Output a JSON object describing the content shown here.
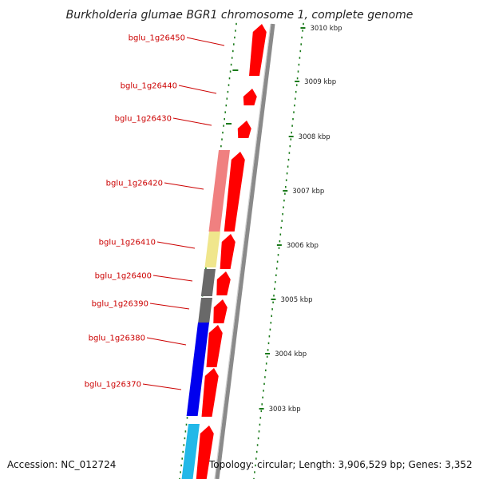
{
  "title": "Burkholderia glumae BGR1 chromosome 1, complete genome",
  "accession": "Accession: NC_012724",
  "topology": "Topology: circular; Length: 3,906,529 bp; Genes: 3,352",
  "colors": {
    "label": "#cc0000",
    "tick": "#1a7a1a",
    "backbone": "#8a8a8a",
    "strand_forward_gene": "#ff0000"
  },
  "kbp_marks": [
    {
      "label": "3010 kbp"
    },
    {
      "label": "3009 kbp"
    },
    {
      "label": "3008 kbp"
    },
    {
      "label": "3007 kbp"
    },
    {
      "label": "3006 kbp"
    },
    {
      "label": "3005 kbp"
    },
    {
      "label": "3004 kbp"
    },
    {
      "label": "3003 kbp"
    }
  ],
  "genes": [
    {
      "label": "bglu_1g26450"
    },
    {
      "label": "bglu_1g26440"
    },
    {
      "label": "bglu_1g26430"
    },
    {
      "label": "bglu_1g26420"
    },
    {
      "label": "bglu_1g26410"
    },
    {
      "label": "bglu_1g26400"
    },
    {
      "label": "bglu_1g26390"
    },
    {
      "label": "bglu_1g26380"
    },
    {
      "label": "bglu_1g26370"
    }
  ],
  "cog_colors": [
    "#f08080",
    "#f0e68c",
    "#696969",
    "#696969",
    "#0000ee",
    "#22b8e8"
  ]
}
